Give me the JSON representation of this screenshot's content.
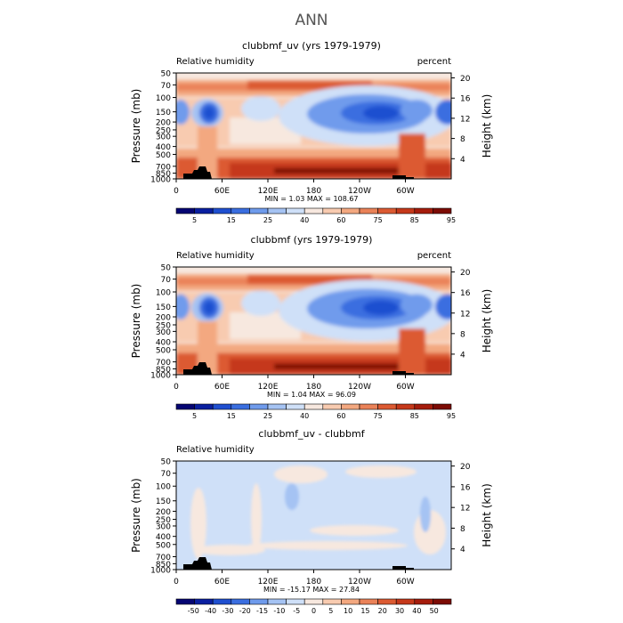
{
  "page_title": "ANN",
  "chart_data": [
    {
      "type": "heatmap",
      "title": "clubbmf_uv (yrs 1979-1979)",
      "left_label": "Relative humidity",
      "right_label": "percent",
      "ylabel": "Pressure (mb)",
      "y2label": "Height (km)",
      "x_ticks": [
        "0",
        "60E",
        "120E",
        "180",
        "120W",
        "60W"
      ],
      "y_ticks": [
        "1000",
        "850",
        "700",
        "500",
        "400",
        "300",
        "250",
        "200",
        "150",
        "100",
        "70",
        "50"
      ],
      "y2_ticks": [
        "4",
        "8",
        "12",
        "16",
        "20"
      ],
      "stats": {
        "min": 1.03,
        "max": 108.67
      },
      "stats_text": "MIN =     1.03   MAX =  108.67",
      "colorbar_labels": [
        "5",
        "15",
        "25",
        "40",
        "60",
        "75",
        "85",
        "95"
      ],
      "colorbar_colors": [
        "#050573",
        "#0a1fa0",
        "#1f4fd0",
        "#3a6ee0",
        "#6f9bec",
        "#a5c3f3",
        "#cfe0f8",
        "#f7e8df",
        "#f8cbb0",
        "#f3a880",
        "#ea8258",
        "#dc5a32",
        "#c5381a",
        "#a51c0c",
        "#7c0b04"
      ]
    },
    {
      "type": "heatmap",
      "title": "clubbmf (yrs 1979-1979)",
      "left_label": "Relative humidity",
      "right_label": "percent",
      "ylabel": "Pressure (mb)",
      "y2label": "Height (km)",
      "x_ticks": [
        "0",
        "60E",
        "120E",
        "180",
        "120W",
        "60W"
      ],
      "y_ticks": [
        "1000",
        "850",
        "700",
        "500",
        "400",
        "300",
        "250",
        "200",
        "150",
        "100",
        "70",
        "50"
      ],
      "y2_ticks": [
        "4",
        "8",
        "12",
        "16",
        "20"
      ],
      "stats": {
        "min": 1.04,
        "max": 96.09
      },
      "stats_text": "MIN =     1.04   MAX =  96.09",
      "colorbar_labels": [
        "5",
        "15",
        "25",
        "40",
        "60",
        "75",
        "85",
        "95"
      ],
      "colorbar_colors": [
        "#050573",
        "#0a1fa0",
        "#1f4fd0",
        "#3a6ee0",
        "#6f9bec",
        "#a5c3f3",
        "#cfe0f8",
        "#f7e8df",
        "#f8cbb0",
        "#f3a880",
        "#ea8258",
        "#dc5a32",
        "#c5381a",
        "#a51c0c",
        "#7c0b04"
      ]
    },
    {
      "type": "heatmap",
      "title": "clubbmf_uv - clubbmf",
      "left_label": "Relative humidity",
      "right_label": "",
      "ylabel": "Pressure (mb)",
      "y2label": "Height (km)",
      "x_ticks": [
        "0",
        "60E",
        "120E",
        "180",
        "120W",
        "60W"
      ],
      "y_ticks": [
        "1000",
        "850",
        "700",
        "500",
        "400",
        "300",
        "250",
        "200",
        "150",
        "100",
        "70",
        "50"
      ],
      "y2_ticks": [
        "4",
        "8",
        "12",
        "16",
        "20"
      ],
      "stats": {
        "min": -15.17,
        "max": 27.84
      },
      "stats_text": "MIN =  -15.17   MAX =   27.84",
      "colorbar_labels": [
        "-50",
        "-40",
        "-30",
        "-20",
        "-15",
        "-10",
        "-5",
        "0",
        "5",
        "10",
        "15",
        "20",
        "30",
        "40",
        "50"
      ],
      "colorbar_colors": [
        "#050573",
        "#0a1fa0",
        "#1f4fd0",
        "#3a6ee0",
        "#6f9bec",
        "#a5c3f3",
        "#cfe0f8",
        "#f7e8df",
        "#f8cbb0",
        "#f3a880",
        "#ea8258",
        "#dc5a32",
        "#c5381a",
        "#a51c0c",
        "#7c0b04"
      ]
    }
  ]
}
